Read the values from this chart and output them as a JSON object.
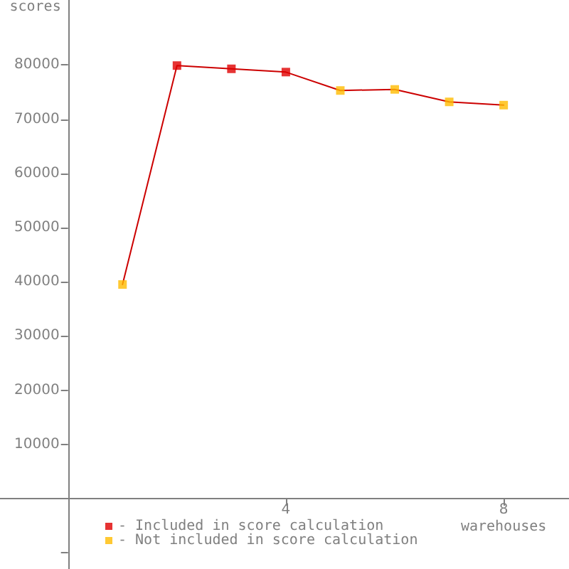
{
  "chart_data": {
    "type": "line",
    "ylabel": "scores",
    "xlabel": "warehouses",
    "x": [
      1,
      2,
      3,
      4,
      5,
      6,
      7,
      8
    ],
    "xlim": [
      -1.25,
      9.2
    ],
    "xticks": [
      4,
      8
    ],
    "ylim": [
      -13000,
      92000
    ],
    "yticks": [
      {
        "value": -10000,
        "label": null
      },
      10000,
      20000,
      30000,
      40000,
      50000,
      60000,
      70000,
      80000
    ],
    "grid": false,
    "legend": "bottom left",
    "series": [
      {
        "color": "#cc0000",
        "marker": "none",
        "line_style": "solid",
        "values": [
          39500,
          79900,
          79300,
          78700,
          75300,
          75500,
          73200,
          72600
        ]
      },
      {
        "type": "scatter",
        "name": "- Included in score calculation",
        "color": "#e00000",
        "marker": "square",
        "values": [
          null,
          79900,
          79300,
          78700,
          null,
          null,
          null,
          null
        ]
      },
      {
        "type": "scatter",
        "name": "- Not included in score calculation",
        "color": "#ffbb00",
        "marker": "square",
        "values": [
          39500,
          null,
          null,
          null,
          75300,
          75500,
          73200,
          72600
        ]
      }
    ]
  }
}
